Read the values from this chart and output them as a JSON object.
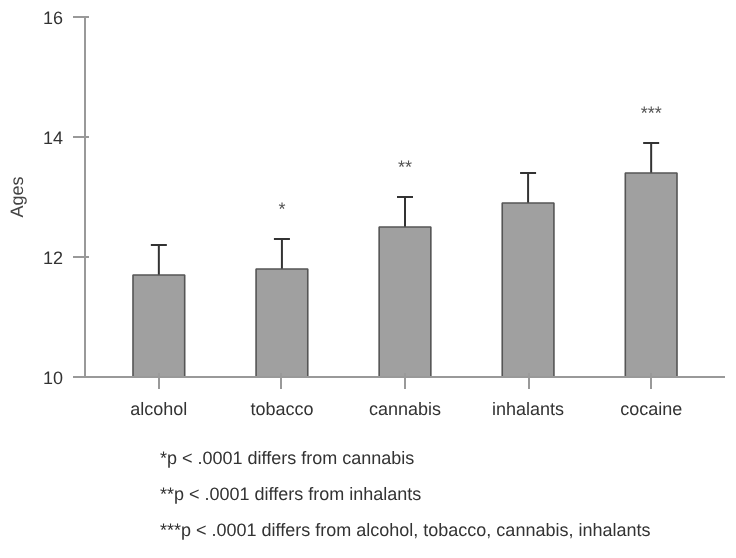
{
  "chart_data": {
    "type": "bar",
    "ylabel": "Ages",
    "categories": [
      "alcohol",
      "tobacco",
      "cannabis",
      "inhalants",
      "cocaine"
    ],
    "values": [
      11.7,
      11.8,
      12.5,
      12.9,
      13.4
    ],
    "errors": [
      0.5,
      0.5,
      0.5,
      0.5,
      0.5
    ],
    "color": "#a0a0a0",
    "ylim": [
      10,
      16
    ],
    "yticks": [
      10,
      12,
      14,
      16
    ],
    "grid": false,
    "annotations": [
      {
        "text": "*",
        "x": "tobacco",
        "y": 12.3
      },
      {
        "text": "**",
        "x": "cannabis",
        "y": 13.0
      },
      {
        "text": "***",
        "x": "cocaine",
        "y": 13.9
      },
      "*p < .0001 differs from cannabis",
      "**p < .0001 differs from inhalants",
      "***p < .0001 differs from alcohol, tobacco, cannabis, inhalants"
    ]
  }
}
